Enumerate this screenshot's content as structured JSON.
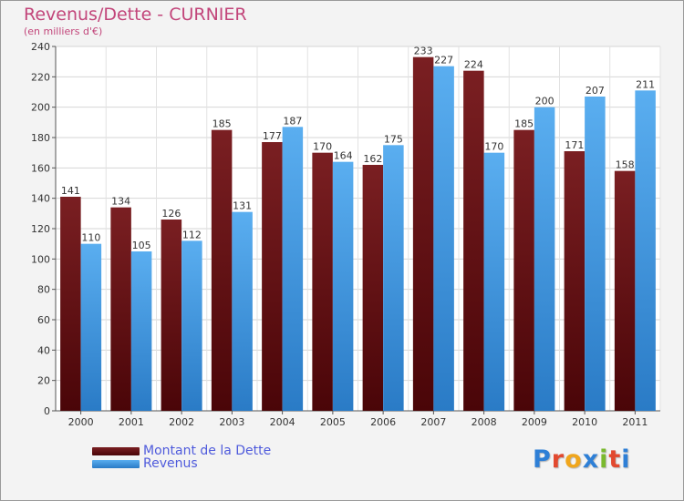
{
  "chart": {
    "title": "Revenus/Dette - CURNIER",
    "subtitle": "(en milliers d'€)"
  },
  "legend": {
    "debt": "Montant de la Dette",
    "revenue": "Revenus"
  },
  "logo": {
    "text": "Proxiti",
    "letter_colors": [
      "#2e7fd6",
      "#e2492f",
      "#f0a61c",
      "#2e7fd6",
      "#7ab92e",
      "#e2492f",
      "#2e7fd6"
    ]
  },
  "colors": {
    "debt": "#7a1f22",
    "debt_dark": "#4a0508",
    "revenue": "#5aaef0",
    "revenue_dark": "#2a7bc6",
    "title": "#c2457a",
    "legend_text": "#4f5bdc",
    "background": "#f3f3f3"
  },
  "chart_data": {
    "type": "bar",
    "title": "Revenus/Dette - CURNIER",
    "subtitle": "(en milliers d'€)",
    "xlabel": "",
    "ylabel": "",
    "categories": [
      "2000",
      "2001",
      "2002",
      "2003",
      "2004",
      "2005",
      "2006",
      "2007",
      "2008",
      "2009",
      "2010",
      "2011"
    ],
    "series": [
      {
        "name": "Montant de la Dette",
        "values": [
          141,
          134,
          126,
          185,
          177,
          170,
          162,
          233,
          224,
          185,
          171,
          158
        ]
      },
      {
        "name": "Revenus",
        "values": [
          110,
          105,
          112,
          131,
          187,
          164,
          175,
          227,
          170,
          200,
          207,
          211
        ]
      }
    ],
    "ylim": [
      0,
      240
    ],
    "yticks": [
      0,
      20,
      40,
      60,
      80,
      100,
      120,
      140,
      160,
      180,
      200,
      220,
      240
    ],
    "grid": true,
    "legend_position": "bottom-left",
    "data_labels": true
  }
}
